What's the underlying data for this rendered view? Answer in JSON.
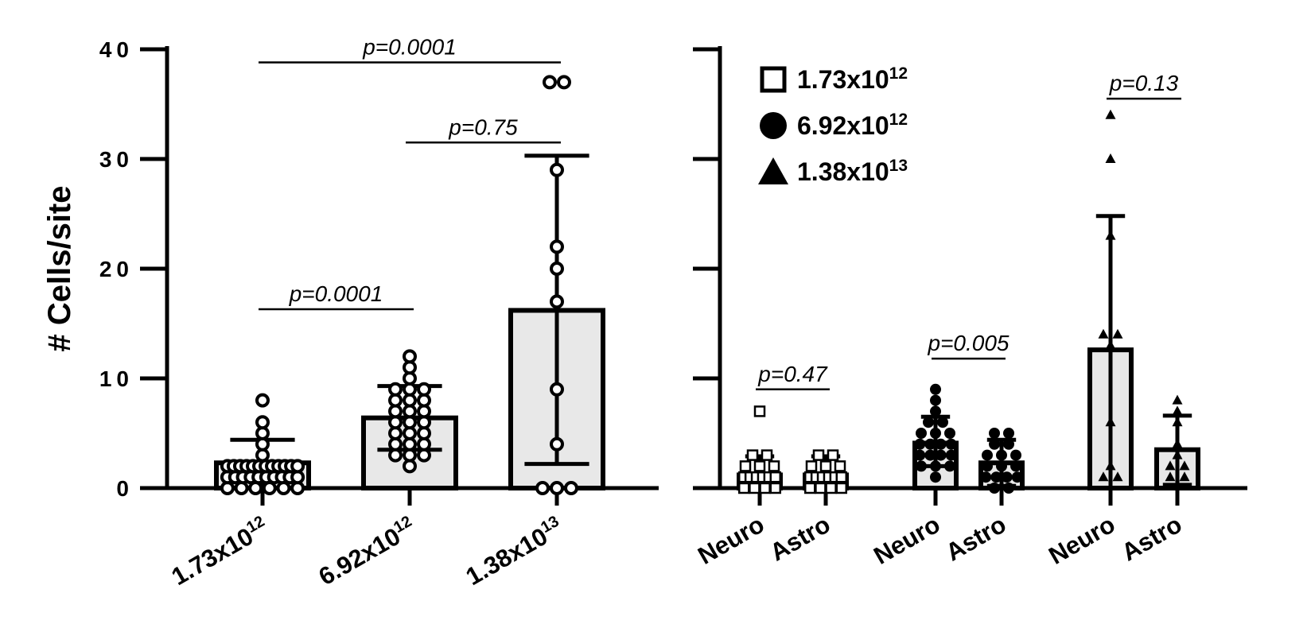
{
  "chart_data": [
    {
      "type": "bar",
      "ylabel": "# Cells/site",
      "ylim": [
        0,
        40
      ],
      "yticks": [
        0,
        10,
        20,
        30,
        40
      ],
      "categories": [
        {
          "base": "1.73x10",
          "exp": "12"
        },
        {
          "base": "6.92x10",
          "exp": "12"
        },
        {
          "base": "1.38x10",
          "exp": "13"
        }
      ],
      "bars": [
        {
          "mean": 2.3,
          "sd_low": 0,
          "sd_high": 4.4,
          "points": [
            0,
            0,
            0,
            0,
            0,
            0,
            1,
            1,
            1,
            1,
            1,
            1,
            1,
            1,
            1,
            1,
            2,
            2,
            2,
            2,
            2,
            2,
            2,
            2,
            2,
            2,
            2,
            2,
            3,
            4,
            5,
            6,
            8
          ]
        },
        {
          "mean": 6.4,
          "sd_low": 3.5,
          "sd_high": 9.3,
          "points": [
            2,
            3,
            3,
            3,
            4,
            4,
            4,
            5,
            5,
            5,
            6,
            6,
            6,
            7,
            7,
            7,
            8,
            8,
            8,
            9,
            9,
            9,
            10,
            11,
            12
          ]
        },
        {
          "mean": 16.2,
          "sd_low": 2.2,
          "sd_high": 30.3,
          "points": [
            0,
            0,
            0,
            4,
            9,
            17,
            20,
            22,
            29,
            37,
            37
          ]
        }
      ],
      "comparisons": [
        {
          "label": "p=0.0001",
          "from": 0,
          "to": 1,
          "y": 16.3
        },
        {
          "label": "p=0.75",
          "from": 1,
          "to": 2,
          "y": 31.5
        },
        {
          "label": "p=0.0001",
          "from": 0,
          "to": 2,
          "y": 38.8
        }
      ]
    },
    {
      "type": "bar",
      "ylim": [
        0,
        40
      ],
      "yticks": [
        0,
        10,
        20,
        30,
        40
      ],
      "categories": [
        "Neuro",
        "Astro",
        "Neuro",
        "Astro",
        "Neuro",
        "Astro"
      ],
      "legend": [
        {
          "marker": "square-open",
          "base": "1.73x10",
          "exp": "12"
        },
        {
          "marker": "circle-filled",
          "base": "6.92x10",
          "exp": "12"
        },
        {
          "marker": "triangle-filled",
          "base": "1.38x10",
          "exp": "13"
        }
      ],
      "legend_position": "top-left",
      "bars": [
        {
          "marker": "square-open",
          "mean": 1.2,
          "sd_high": 2.9,
          "points": [
            0,
            0,
            0,
            0,
            1,
            1,
            1,
            1,
            1,
            1,
            2,
            2,
            2,
            3,
            3,
            7
          ]
        },
        {
          "marker": "square-open",
          "mean": 1.2,
          "sd_high": 2.9,
          "points": [
            0,
            0,
            0,
            0,
            1,
            1,
            1,
            1,
            1,
            1,
            2,
            2,
            2,
            3,
            3
          ]
        },
        {
          "marker": "circle-filled",
          "mean": 4.1,
          "sd_low": 2,
          "sd_high": 6.5,
          "points": [
            1,
            2,
            2,
            2,
            3,
            3,
            3,
            3,
            4,
            4,
            4,
            4,
            5,
            5,
            5,
            6,
            6,
            7,
            8,
            9
          ]
        },
        {
          "marker": "circle-filled",
          "mean": 2.3,
          "sd_low": 0.2,
          "sd_high": 4.4,
          "points": [
            0,
            0,
            1,
            1,
            1,
            1,
            2,
            2,
            2,
            3,
            3,
            3,
            4,
            4,
            5,
            5
          ]
        },
        {
          "marker": "triangle-filled",
          "mean": 12.6,
          "sd_low": 0,
          "sd_high": 24.8,
          "points": [
            1,
            1,
            2,
            6,
            13,
            14,
            14,
            23,
            30,
            34
          ]
        },
        {
          "marker": "triangle-filled",
          "mean": 3.5,
          "sd_low": 0.3,
          "sd_high": 6.6,
          "points": [
            1,
            1,
            2,
            2,
            3,
            4,
            6,
            7,
            8
          ]
        }
      ],
      "comparisons": [
        {
          "label": "p=0.47",
          "from": 0,
          "to": 1,
          "y": 9
        },
        {
          "label": "p=0.005",
          "from": 2,
          "to": 3,
          "y": 11.8
        },
        {
          "label": "p=0.13",
          "from": 4,
          "to": 5,
          "y": 35.5
        }
      ]
    }
  ]
}
